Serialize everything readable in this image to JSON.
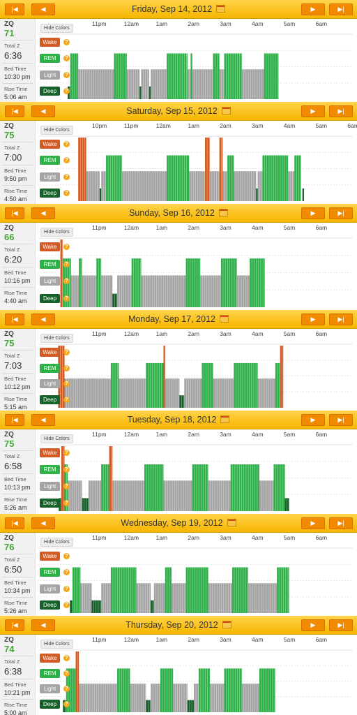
{
  "hide_colors_label": "Hide Colors",
  "labels": {
    "zq": "ZQ",
    "total_z": "Total Z",
    "bed_time": "Bed Time",
    "rise_time": "Rise Time"
  },
  "stages": [
    "Wake",
    "REM",
    "Light",
    "Deep"
  ],
  "help_glyph": "?",
  "nav": {
    "first": "|◀",
    "prev": "◀",
    "next": "▶",
    "last": "▶|"
  },
  "colors": {
    "wake": "#d35a22",
    "rem": "#2fb14a",
    "light": "#a4a4a4",
    "deep": "#16612a",
    "header": "#f9c21b",
    "zq": "#45a537"
  },
  "chart_data": [
    {
      "type": "bar",
      "title": "Friday, Sep 14, 2012",
      "zq": "71",
      "total_z": "6:36",
      "bed_time": "10:30 pm",
      "rise_time": "5:06 am",
      "xticks": [
        "11pm",
        "12am",
        "1am",
        "2am",
        "3am",
        "4am",
        "5am",
        "6am"
      ],
      "start": 22.5,
      "end": 29.1,
      "tick_start": 23,
      "segments": [
        [
          "D",
          22.5,
          22.58
        ],
        [
          "R",
          22.58,
          22.83
        ],
        [
          "L",
          22.83,
          23.95
        ],
        [
          "R",
          23.95,
          24.35
        ],
        [
          "L",
          24.35,
          24.75
        ],
        [
          "D",
          24.75,
          24.8
        ],
        [
          "L",
          24.8,
          25.05
        ],
        [
          "D",
          25.05,
          25.1
        ],
        [
          "L",
          25.1,
          25.6
        ],
        [
          "R",
          25.6,
          26.25
        ],
        [
          "L",
          26.25,
          26.35
        ],
        [
          "R",
          26.35,
          26.4
        ],
        [
          "L",
          26.4,
          27.05
        ],
        [
          "R",
          27.05,
          27.25
        ],
        [
          "L",
          27.25,
          27.4
        ],
        [
          "R",
          27.4,
          27.95
        ],
        [
          "L",
          27.95,
          28.65
        ],
        [
          "R",
          28.65,
          29.1
        ]
      ]
    },
    {
      "type": "bar",
      "title": "Saturday, Sep 15, 2012",
      "zq": "75",
      "total_z": "7:00",
      "bed_time": "9:50 pm",
      "rise_time": "4:50 am",
      "xticks": [
        "10pm",
        "11pm",
        "12am",
        "1am",
        "2am",
        "3am",
        "4am",
        "5am",
        "6am"
      ],
      "start": 21.83,
      "end": 28.9,
      "tick_start": 22,
      "segments": [
        [
          "W",
          21.83,
          22.08
        ],
        [
          "L",
          22.08,
          22.5
        ],
        [
          "D",
          22.5,
          22.55
        ],
        [
          "L",
          22.55,
          22.7
        ],
        [
          "R",
          22.7,
          23.2
        ],
        [
          "L",
          23.2,
          24.6
        ],
        [
          "R",
          24.6,
          25.3
        ],
        [
          "L",
          25.3,
          25.8
        ],
        [
          "W",
          25.8,
          25.95
        ],
        [
          "L",
          25.95,
          26.25
        ],
        [
          "W",
          26.25,
          26.35
        ],
        [
          "L",
          26.35,
          26.5
        ],
        [
          "R",
          26.5,
          26.7
        ],
        [
          "L",
          26.7,
          27.4
        ],
        [
          "D",
          27.4,
          27.45
        ],
        [
          "L",
          27.45,
          27.6
        ],
        [
          "R",
          27.6,
          28.4
        ],
        [
          "L",
          28.4,
          28.6
        ],
        [
          "R",
          28.6,
          28.8
        ],
        [
          "D",
          28.85,
          28.9
        ]
      ]
    },
    {
      "type": "bar",
      "title": "Sunday, Sep 16, 2012",
      "zq": "66",
      "total_z": "6:20",
      "bed_time": "10:16 pm",
      "rise_time": "4:40 am",
      "xticks": [
        "11pm",
        "12am",
        "1am",
        "2am",
        "3am",
        "4am",
        "5am",
        "6am"
      ],
      "start": 22.27,
      "end": 28.67,
      "tick_start": 23,
      "segments": [
        [
          "W",
          22.27,
          22.35
        ],
        [
          "R",
          22.35,
          22.6
        ],
        [
          "L",
          22.6,
          22.85
        ],
        [
          "R",
          22.85,
          22.95
        ],
        [
          "L",
          22.95,
          23.4
        ],
        [
          "R",
          23.4,
          23.55
        ],
        [
          "L",
          23.55,
          23.9
        ],
        [
          "D",
          23.9,
          24.05
        ],
        [
          "L",
          24.05,
          24.5
        ],
        [
          "R",
          24.5,
          24.8
        ],
        [
          "L",
          24.8,
          26.2
        ],
        [
          "R",
          26.2,
          26.65
        ],
        [
          "L",
          26.65,
          27.3
        ],
        [
          "R",
          27.3,
          27.8
        ],
        [
          "L",
          27.8,
          28.2
        ],
        [
          "R",
          28.2,
          28.67
        ]
      ]
    },
    {
      "type": "bar",
      "title": "Monday, Sep 17, 2012",
      "zq": "75",
      "total_z": "7:03",
      "bed_time": "10:12 pm",
      "rise_time": "5:15 am",
      "xticks": [
        "11pm",
        "12am",
        "1am",
        "2am",
        "3am",
        "4am",
        "5am",
        "6am"
      ],
      "start": 22.2,
      "end": 29.25,
      "tick_start": 23,
      "segments": [
        [
          "W",
          22.2,
          22.4
        ],
        [
          "L",
          22.4,
          23.85
        ],
        [
          "R",
          23.85,
          24.1
        ],
        [
          "L",
          24.1,
          24.95
        ],
        [
          "R",
          24.95,
          25.5
        ],
        [
          "W",
          25.5,
          25.55
        ],
        [
          "L",
          25.55,
          26.0
        ],
        [
          "D",
          26.0,
          26.15
        ],
        [
          "L",
          26.15,
          26.7
        ],
        [
          "R",
          26.7,
          27.05
        ],
        [
          "L",
          27.05,
          27.7
        ],
        [
          "R",
          27.7,
          28.45
        ],
        [
          "L",
          28.45,
          29.0
        ],
        [
          "R",
          29.0,
          29.15
        ],
        [
          "W",
          29.15,
          29.25
        ]
      ]
    },
    {
      "type": "bar",
      "title": "Tuesday, Sep 18, 2012",
      "zq": "75",
      "total_z": "6:58",
      "bed_time": "10:13 pm",
      "rise_time": "5:26 am",
      "xticks": [
        "11pm",
        "12am",
        "1am",
        "2am",
        "3am",
        "4am",
        "5am",
        "6am"
      ],
      "start": 22.22,
      "end": 29.43,
      "tick_start": 23,
      "segments": [
        [
          "D",
          22.22,
          22.3
        ],
        [
          "W",
          22.3,
          22.4
        ],
        [
          "R",
          22.4,
          22.5
        ],
        [
          "L",
          22.5,
          22.95
        ],
        [
          "D",
          22.95,
          23.15
        ],
        [
          "L",
          23.15,
          23.55
        ],
        [
          "R",
          23.55,
          23.8
        ],
        [
          "W",
          23.8,
          23.9
        ],
        [
          "L",
          23.9,
          24.9
        ],
        [
          "R",
          24.9,
          25.5
        ],
        [
          "L",
          25.5,
          26.4
        ],
        [
          "R",
          26.4,
          26.9
        ],
        [
          "L",
          26.9,
          27.6
        ],
        [
          "R",
          27.6,
          28.5
        ],
        [
          "L",
          28.5,
          28.95
        ],
        [
          "R",
          28.95,
          29.3
        ],
        [
          "D",
          29.3,
          29.43
        ]
      ]
    },
    {
      "type": "bar",
      "title": "Wednesday, Sep 19, 2012",
      "zq": "76",
      "total_z": "6:50",
      "bed_time": "10:34 pm",
      "rise_time": "5:26 am",
      "xticks": [
        "11pm",
        "12am",
        "1am",
        "2am",
        "3am",
        "4am",
        "5am",
        "6am"
      ],
      "start": 22.57,
      "end": 29.43,
      "tick_start": 23,
      "segments": [
        [
          "D",
          22.57,
          22.65
        ],
        [
          "R",
          22.65,
          22.9
        ],
        [
          "L",
          22.9,
          23.25
        ],
        [
          "D",
          23.25,
          23.55
        ],
        [
          "L",
          23.55,
          23.85
        ],
        [
          "R",
          23.85,
          24.65
        ],
        [
          "L",
          24.65,
          25.1
        ],
        [
          "D",
          25.1,
          25.2
        ],
        [
          "L",
          25.2,
          25.55
        ],
        [
          "R",
          25.55,
          25.75
        ],
        [
          "L",
          25.75,
          26.2
        ],
        [
          "R",
          26.2,
          26.9
        ],
        [
          "L",
          26.9,
          27.65
        ],
        [
          "R",
          27.65,
          28.15
        ],
        [
          "L",
          28.15,
          29.05
        ],
        [
          "R",
          29.05,
          29.43
        ]
      ]
    },
    {
      "type": "bar",
      "title": "Thursday, Sep 20, 2012",
      "zq": "74",
      "total_z": "6:38",
      "bed_time": "10:21 pm",
      "rise_time": "5:00 am",
      "xticks": [
        "11pm",
        "12am",
        "1am",
        "2am",
        "3am",
        "4am",
        "5am",
        "6am"
      ],
      "start": 22.35,
      "end": 29.0,
      "tick_start": 23,
      "segments": [
        [
          "D",
          22.35,
          22.45
        ],
        [
          "R",
          22.45,
          22.75
        ],
        [
          "W",
          22.75,
          22.85
        ],
        [
          "L",
          22.85,
          24.05
        ],
        [
          "R",
          24.05,
          24.45
        ],
        [
          "L",
          24.45,
          24.95
        ],
        [
          "D",
          24.95,
          25.1
        ],
        [
          "L",
          25.1,
          25.4
        ],
        [
          "R",
          25.4,
          25.8
        ],
        [
          "L",
          25.8,
          26.25
        ],
        [
          "D",
          26.25,
          26.45
        ],
        [
          "L",
          26.45,
          26.6
        ],
        [
          "R",
          26.6,
          26.95
        ],
        [
          "L",
          26.95,
          27.4
        ],
        [
          "R",
          27.4,
          27.95
        ],
        [
          "L",
          27.95,
          28.5
        ],
        [
          "R",
          28.5,
          29.0
        ]
      ]
    }
  ]
}
